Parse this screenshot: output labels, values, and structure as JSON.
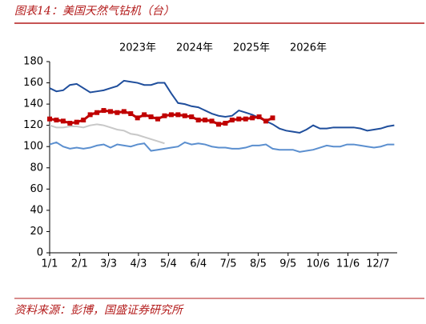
{
  "title": "图表14：美国天然气钻机（台）",
  "source": "资料来源：彭博，国盛证券研究所",
  "chart_data": {
    "type": "line",
    "x": [
      1,
      8,
      15,
      22,
      29,
      36,
      43,
      50,
      57,
      64,
      71,
      78,
      85,
      92,
      99,
      106,
      113,
      120,
      127,
      134,
      141,
      148,
      155,
      162,
      169,
      176,
      183,
      190,
      197,
      204,
      211,
      218,
      225,
      232,
      239,
      246,
      253,
      260,
      267,
      274,
      281,
      288,
      295,
      302,
      309,
      316,
      323,
      330,
      337,
      344,
      351,
      358
    ],
    "xlim": [
      1,
      361
    ],
    "xticks": [
      {
        "value": 1,
        "label": "1/1"
      },
      {
        "value": 32,
        "label": "2/1"
      },
      {
        "value": 62,
        "label": "3/3"
      },
      {
        "value": 93,
        "label": "4/3"
      },
      {
        "value": 124,
        "label": "5/4"
      },
      {
        "value": 155,
        "label": "6/4"
      },
      {
        "value": 186,
        "label": "7/5"
      },
      {
        "value": 217,
        "label": "8/5"
      },
      {
        "value": 248,
        "label": "9/5"
      },
      {
        "value": 279,
        "label": "10/6"
      },
      {
        "value": 310,
        "label": "11/6"
      },
      {
        "value": 341,
        "label": "12/7"
      }
    ],
    "ylim": [
      0,
      180
    ],
    "yticks": [
      0,
      20,
      40,
      60,
      80,
      100,
      120,
      140,
      160,
      180
    ],
    "series": [
      {
        "name": "2023年",
        "color": "#1f4e9c",
        "values": [
          155,
          152,
          153,
          158,
          159,
          155,
          151,
          152,
          153,
          155,
          157,
          162,
          161,
          160,
          158,
          158,
          160,
          160,
          150,
          141,
          140,
          138,
          137,
          134,
          131,
          129,
          128,
          129,
          134,
          132,
          130,
          127,
          124,
          121,
          117,
          115,
          114,
          113,
          116,
          120,
          117,
          117,
          118,
          118,
          118,
          118,
          117,
          115,
          116,
          117,
          119,
          120
        ]
      },
      {
        "name": "2024年",
        "color": "#5b8fcf",
        "values": [
          102,
          104,
          100,
          98,
          99,
          98,
          99,
          101,
          102,
          99,
          102,
          101,
          100,
          102,
          103,
          96,
          97,
          98,
          99,
          100,
          104,
          102,
          103,
          102,
          100,
          99,
          99,
          98,
          98,
          99,
          101,
          101,
          102,
          98,
          97,
          97,
          97,
          95,
          96,
          97,
          99,
          101,
          100,
          100,
          102,
          102,
          101,
          100,
          99,
          100,
          102,
          102
        ]
      },
      {
        "name": "2025年",
        "color": "#c00000",
        "marker": "square",
        "values": [
          126,
          125,
          124,
          122,
          123,
          125,
          130,
          132,
          134,
          133,
          132,
          133,
          131,
          127,
          130,
          128,
          126,
          129,
          130,
          130,
          129,
          128,
          125,
          125,
          124,
          121,
          122,
          125,
          126,
          126,
          127,
          128,
          124,
          127,
          null,
          null,
          null,
          null,
          null,
          null,
          null,
          null,
          null,
          null,
          null,
          null,
          null,
          null,
          null,
          null,
          null,
          null
        ]
      },
      {
        "name": "2026年",
        "color": "#c8c8c8",
        "values": [
          120,
          118,
          118,
          119,
          119,
          118,
          120,
          121,
          120,
          118,
          116,
          115,
          112,
          111,
          109,
          107,
          105,
          103,
          null,
          null,
          null,
          null,
          null,
          null,
          null,
          null,
          null,
          null,
          null,
          null,
          null,
          null,
          null,
          null,
          null,
          null,
          null,
          null,
          null,
          null,
          null,
          null,
          null,
          null,
          null,
          null,
          null,
          null,
          null,
          null,
          null,
          null
        ]
      }
    ]
  }
}
